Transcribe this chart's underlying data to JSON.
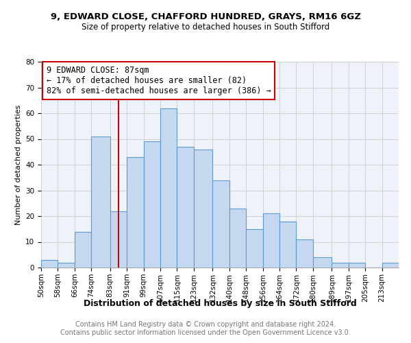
{
  "title1": "9, EDWARD CLOSE, CHAFFORD HUNDRED, GRAYS, RM16 6GZ",
  "title2": "Size of property relative to detached houses in South Stifford",
  "xlabel": "Distribution of detached houses by size in South Stifford",
  "ylabel": "Number of detached properties",
  "bin_labels": [
    "50sqm",
    "58sqm",
    "66sqm",
    "74sqm",
    "83sqm",
    "91sqm",
    "99sqm",
    "107sqm",
    "115sqm",
    "123sqm",
    "132sqm",
    "140sqm",
    "148sqm",
    "156sqm",
    "164sqm",
    "172sqm",
    "180sqm",
    "189sqm",
    "197sqm",
    "205sqm",
    "213sqm"
  ],
  "bin_edges": [
    50,
    58,
    66,
    74,
    83,
    91,
    99,
    107,
    115,
    123,
    132,
    140,
    148,
    156,
    164,
    172,
    180,
    189,
    197,
    205,
    213,
    221
  ],
  "counts": [
    3,
    2,
    14,
    51,
    22,
    43,
    49,
    62,
    47,
    46,
    34,
    23,
    15,
    21,
    18,
    11,
    4,
    2,
    2,
    0,
    2
  ],
  "bar_color": "#c5d8f0",
  "bar_edge_color": "#5b9bd5",
  "vline_x": 87,
  "vline_color": "#cc0000",
  "annotation_text": "9 EDWARD CLOSE: 87sqm\n← 17% of detached houses are smaller (82)\n82% of semi-detached houses are larger (386) →",
  "annotation_box_edgecolor": "#cc0000",
  "annotation_fontsize": 8.5,
  "ylim": [
    0,
    80
  ],
  "yticks": [
    0,
    10,
    20,
    30,
    40,
    50,
    60,
    70,
    80
  ],
  "grid_color": "#cccccc",
  "bg_color": "#eef2f9",
  "footer1": "Contains HM Land Registry data © Crown copyright and database right 2024.",
  "footer2": "Contains public sector information licensed under the Open Government Licence v3.0.",
  "title1_fontsize": 9.5,
  "title2_fontsize": 8.5,
  "xlabel_fontsize": 9,
  "ylabel_fontsize": 8,
  "tick_fontsize": 7.5
}
